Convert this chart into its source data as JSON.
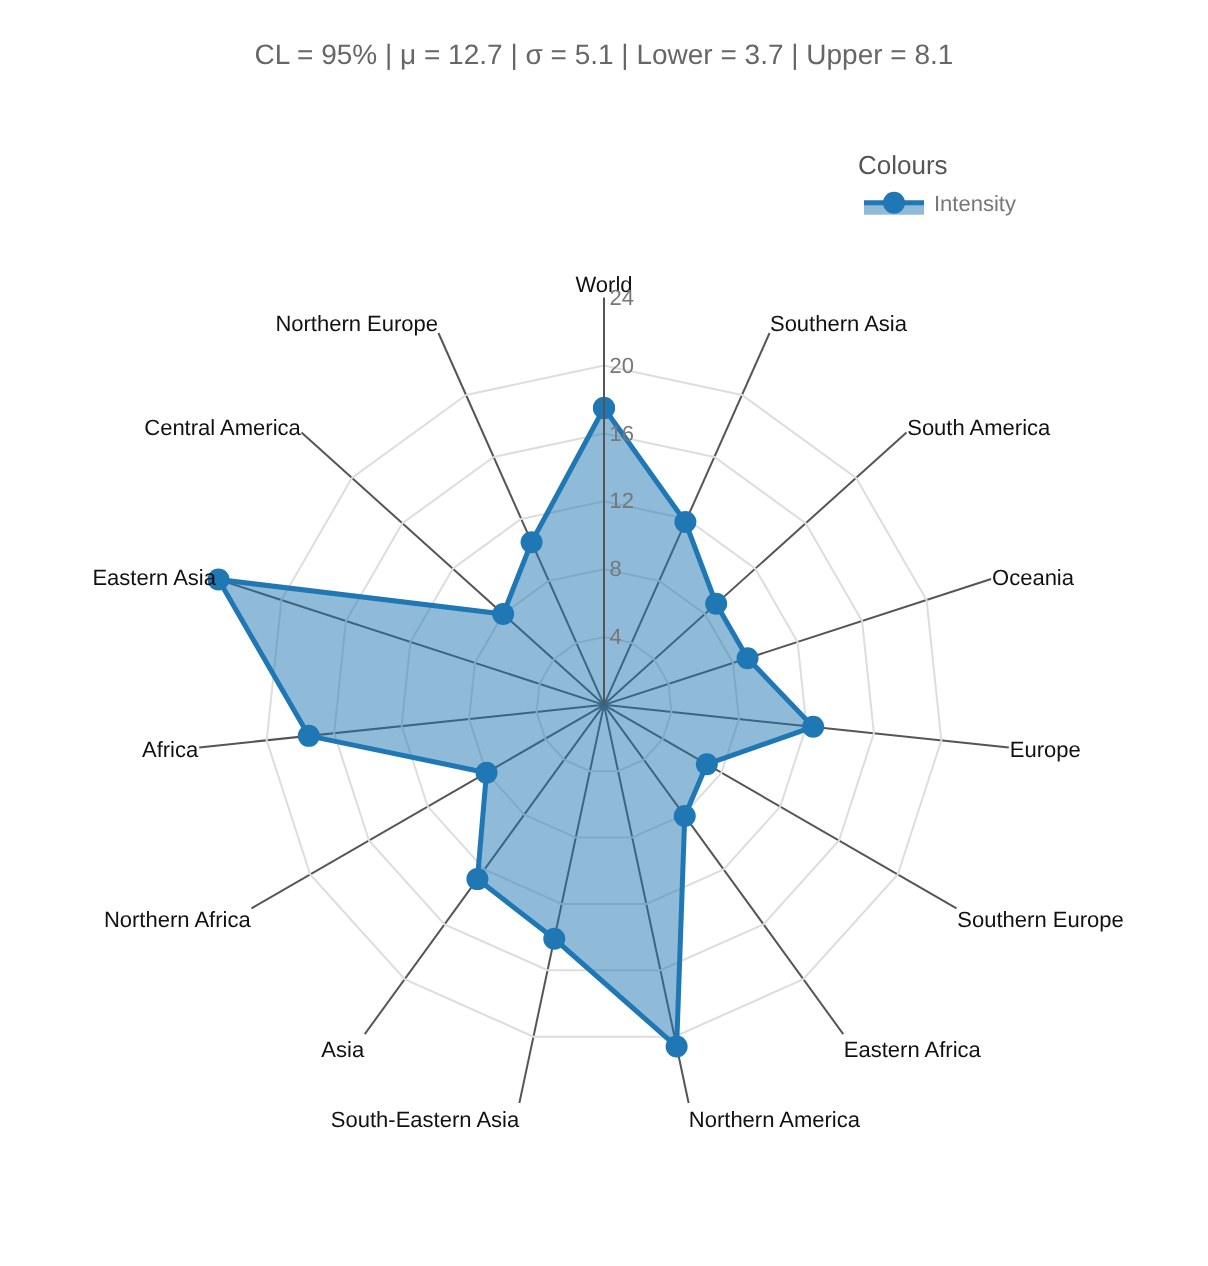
{
  "chart_data": {
    "type": "radar",
    "title": "CL = 95% | μ = 12.7 | σ = 5.1 | Lower = 3.7 | Upper = 8.1",
    "categories": [
      "World",
      "Southern Asia",
      "South America",
      "Oceania",
      "Europe",
      "Southern Europe",
      "Eastern Africa",
      "Northern America",
      "South-Eastern Asia",
      "Asia",
      "Northern Africa",
      "Africa",
      "Eastern Asia",
      "Central America",
      "Northern Europe"
    ],
    "series": [
      {
        "name": "Intensity",
        "color": "#1f77b4",
        "values": [
          17.5,
          11.8,
          8.9,
          8.9,
          12.4,
          7.0,
          8.1,
          20.6,
          14.1,
          12.7,
          8.0,
          17.5,
          23.9,
          8.0,
          10.5
        ]
      }
    ],
    "ylim": [
      0,
      24
    ],
    "yticks": [
      4,
      8,
      12,
      16,
      20,
      24
    ],
    "legend_title": "Colours",
    "legend": "top right",
    "marker": "circle",
    "line_style": "solid",
    "grid": true
  }
}
